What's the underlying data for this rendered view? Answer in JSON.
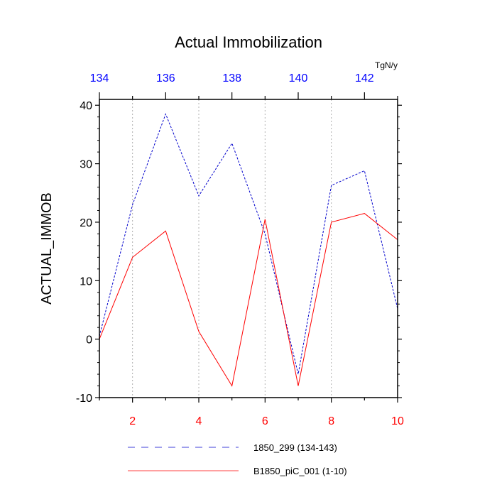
{
  "chart_data": {
    "type": "line",
    "title": "Actual Immobilization",
    "ylabel": "ACTUAL_IMMOB",
    "units": "TgN/y",
    "ylim": [
      -10,
      41
    ],
    "y_ticks": [
      40,
      30,
      20,
      10,
      0,
      -10
    ],
    "y_tick_labels": [
      "40",
      "30",
      "20",
      "10",
      "0",
      "-10"
    ],
    "bottom_axis": {
      "range": [
        1,
        10
      ],
      "ticks": [
        2,
        4,
        6,
        8,
        10
      ],
      "tick_labels": [
        "2",
        "4",
        "6",
        "8",
        "10"
      ],
      "color": "#ff0000"
    },
    "top_axis": {
      "range": [
        134,
        143
      ],
      "ticks": [
        134,
        136,
        138,
        140,
        142
      ],
      "tick_labels": [
        "134",
        "136",
        "138",
        "140",
        "142"
      ],
      "color": "#0000ff"
    },
    "grid": "vertical dotted",
    "series": [
      {
        "name": "1850_299 (134-143)",
        "axis": "top",
        "color": "#0000cc",
        "style": "dashed",
        "x": [
          134,
          135,
          136,
          137,
          138,
          139,
          140,
          141,
          142,
          143
        ],
        "values": [
          0.5,
          23,
          38.5,
          24.5,
          33.5,
          18,
          -6,
          26.3,
          28.8,
          5.2
        ]
      },
      {
        "name": "B1850_piC_001 (1-10)",
        "axis": "bottom",
        "color": "#ff0000",
        "style": "solid",
        "x": [
          1,
          2,
          3,
          4,
          5,
          6,
          7,
          8,
          9,
          10
        ],
        "values": [
          0,
          14,
          18.5,
          1.3,
          -8,
          20.5,
          -8,
          20,
          21.5,
          17
        ]
      }
    ],
    "legend_position": "bottom"
  }
}
